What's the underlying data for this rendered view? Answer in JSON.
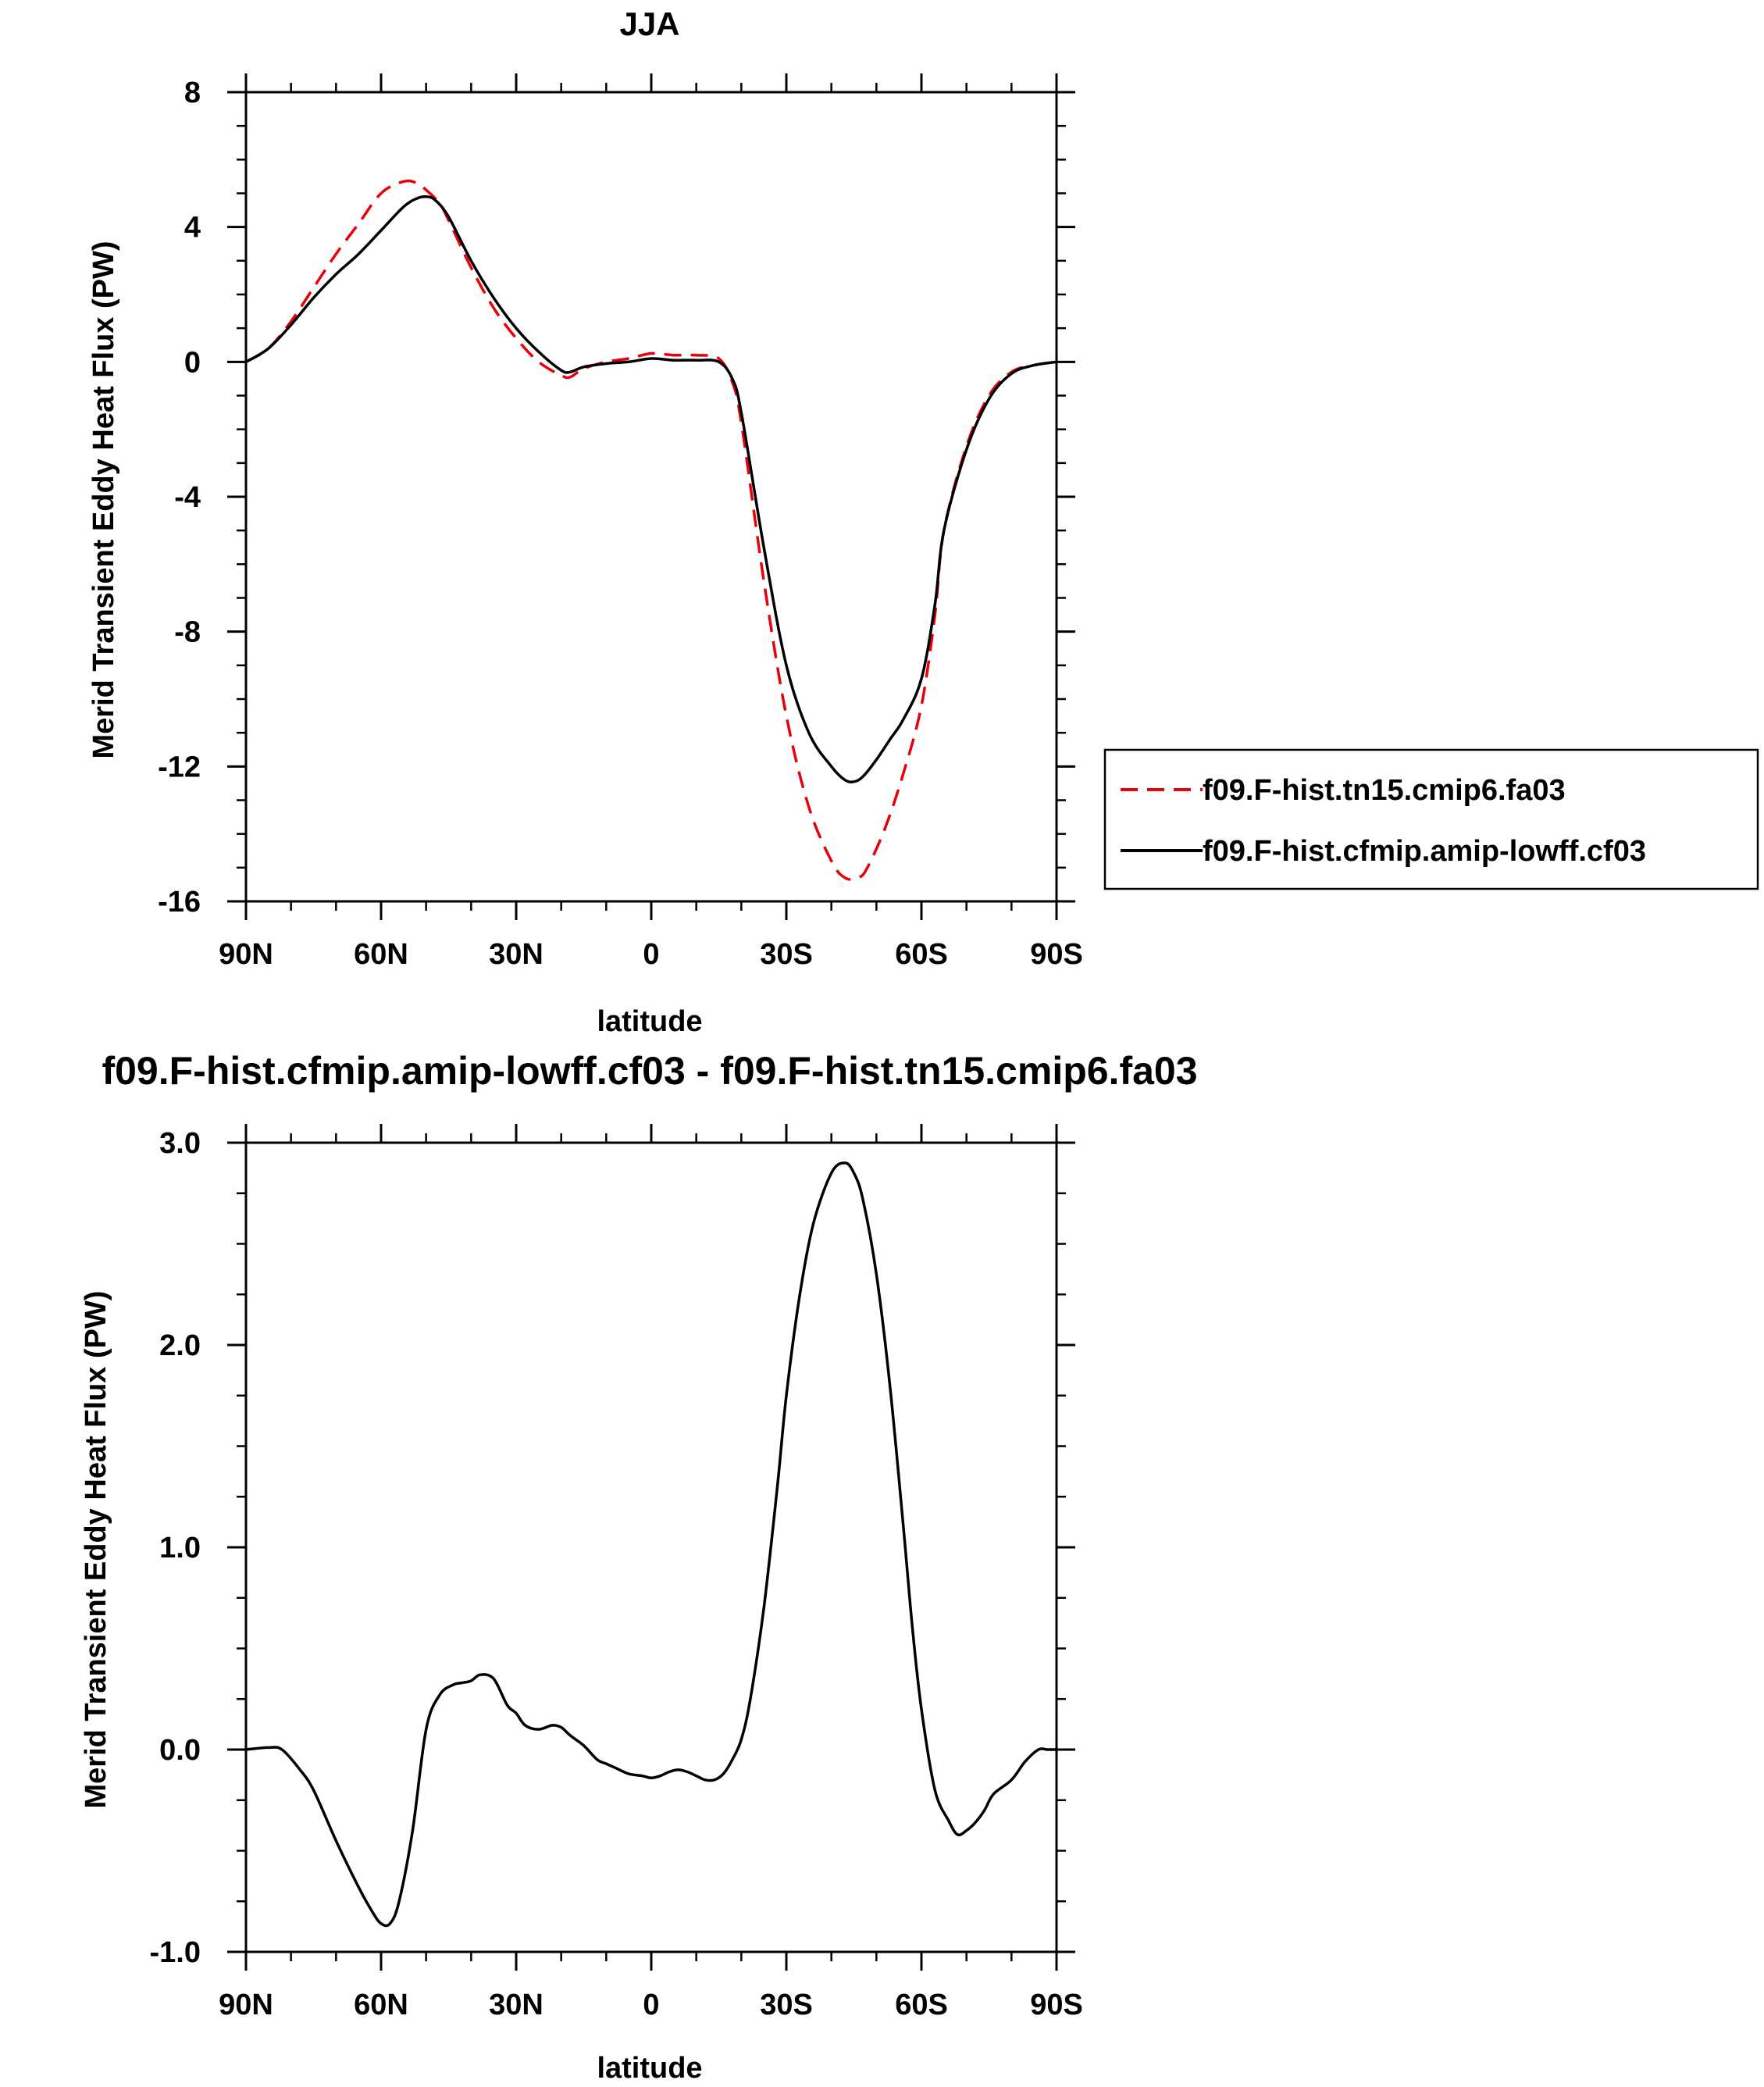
{
  "chart_data": [
    {
      "type": "line",
      "title": "JJA",
      "xlabel": "latitude",
      "ylabel": "Merid Transient Eddy Heat Flux (PW)",
      "xlim": [
        90,
        -90
      ],
      "ylim": [
        -16,
        8
      ],
      "x_ticks": [
        {
          "v": 90,
          "label": "90N"
        },
        {
          "v": 60,
          "label": "60N"
        },
        {
          "v": 30,
          "label": "30N"
        },
        {
          "v": 0,
          "label": "0"
        },
        {
          "v": -30,
          "label": "30S"
        },
        {
          "v": -60,
          "label": "60S"
        },
        {
          "v": -90,
          "label": "90S"
        }
      ],
      "y_ticks": [
        {
          "v": 8,
          "label": "8"
        },
        {
          "v": 4,
          "label": "4"
        },
        {
          "v": 0,
          "label": "0"
        },
        {
          "v": -4,
          "label": "-4"
        },
        {
          "v": -8,
          "label": "-8"
        },
        {
          "v": -12,
          "label": "-12"
        },
        {
          "v": -16,
          "label": "-16"
        }
      ],
      "legend_position": "right",
      "series": [
        {
          "name": "f09.F-hist.tn15.cmip6.fa03",
          "color": "#e8000b",
          "dash": "dashed",
          "x": [
            90,
            85,
            80,
            75,
            70,
            65,
            60,
            55,
            52,
            50,
            47,
            45,
            40,
            35,
            30,
            25,
            20,
            18,
            15,
            10,
            5,
            0,
            -5,
            -10,
            -15,
            -18,
            -20,
            -25,
            -30,
            -35,
            -40,
            -43,
            -46,
            -48,
            -52,
            -56,
            -60,
            -63,
            -65,
            -70,
            -75,
            -80,
            -85,
            -90
          ],
          "y": [
            0,
            0.4,
            1.2,
            2.2,
            3.2,
            4.1,
            5.0,
            5.35,
            5.3,
            5.1,
            4.7,
            4.2,
            2.8,
            1.6,
            0.7,
            0.0,
            -0.4,
            -0.45,
            -0.2,
            0.0,
            0.1,
            0.25,
            0.2,
            0.2,
            0.1,
            -0.6,
            -1.8,
            -6.5,
            -10.5,
            -13.2,
            -14.8,
            -15.3,
            -15.3,
            -15.0,
            -13.8,
            -12.2,
            -10.2,
            -7.5,
            -5.0,
            -2.5,
            -1.0,
            -0.3,
            -0.1,
            0
          ]
        },
        {
          "name": "f09.F-hist.cfmip.amip-lowff.cf03",
          "color": "#000000",
          "dash": "solid",
          "x": [
            90,
            85,
            80,
            75,
            70,
            65,
            60,
            55,
            52,
            50,
            48,
            45,
            40,
            35,
            30,
            25,
            20,
            18,
            15,
            10,
            5,
            0,
            -5,
            -10,
            -15,
            -18,
            -20,
            -25,
            -30,
            -35,
            -40,
            -43,
            -45,
            -47,
            -50,
            -53,
            -56,
            -60,
            -63,
            -65,
            -70,
            -75,
            -80,
            -85,
            -90
          ],
          "y": [
            0,
            0.4,
            1.1,
            1.9,
            2.6,
            3.2,
            3.9,
            4.6,
            4.85,
            4.9,
            4.8,
            4.3,
            3.0,
            1.9,
            1.0,
            0.3,
            -0.25,
            -0.3,
            -0.15,
            -0.05,
            0.0,
            0.1,
            0.05,
            0.05,
            0.0,
            -0.5,
            -1.5,
            -5.5,
            -9.0,
            -11.0,
            -12.0,
            -12.4,
            -12.45,
            -12.3,
            -11.8,
            -11.2,
            -10.6,
            -9.4,
            -7.2,
            -5.0,
            -2.6,
            -1.1,
            -0.35,
            -0.1,
            0
          ]
        }
      ]
    },
    {
      "type": "line",
      "title": "f09.F-hist.cfmip.amip-lowff.cf03 - f09.F-hist.tn15.cmip6.fa03",
      "xlabel": "latitude",
      "ylabel": "Merid Transient Eddy Heat Flux (PW)",
      "xlim": [
        90,
        -90
      ],
      "ylim": [
        -1.0,
        3.0
      ],
      "x_ticks": [
        {
          "v": 90,
          "label": "90N"
        },
        {
          "v": 60,
          "label": "60N"
        },
        {
          "v": 30,
          "label": "30N"
        },
        {
          "v": 0,
          "label": "0"
        },
        {
          "v": -30,
          "label": "30S"
        },
        {
          "v": -60,
          "label": "60S"
        },
        {
          "v": -90,
          "label": "90S"
        }
      ],
      "y_ticks": [
        {
          "v": 3.0,
          "label": "3.0"
        },
        {
          "v": 2.0,
          "label": "2.0"
        },
        {
          "v": 1.0,
          "label": "1.0"
        },
        {
          "v": 0.0,
          "label": "0.0"
        },
        {
          "v": -1.0,
          "label": "-1.0"
        }
      ],
      "series": [
        {
          "color": "#000000",
          "dash": "solid",
          "x": [
            90,
            85,
            82,
            78,
            75,
            70,
            65,
            62,
            60,
            58,
            56,
            53,
            50,
            47,
            44,
            42,
            40,
            38,
            35,
            32,
            30,
            28,
            25,
            22,
            20,
            18,
            15,
            12,
            10,
            8,
            5,
            2,
            0,
            -2,
            -4,
            -6,
            -8,
            -10,
            -12,
            -14,
            -16,
            -18,
            -20,
            -22,
            -25,
            -28,
            -30,
            -33,
            -36,
            -40,
            -43,
            -45,
            -47,
            -50,
            -53,
            -56,
            -58,
            -60,
            -63,
            -66,
            -68,
            -70,
            -72,
            -74,
            -76,
            -80,
            -83,
            -86,
            -88,
            -90
          ],
          "y": [
            0.0,
            0.01,
            0.0,
            -0.1,
            -0.2,
            -0.45,
            -0.68,
            -0.8,
            -0.86,
            -0.86,
            -0.75,
            -0.4,
            0.1,
            0.27,
            0.32,
            0.33,
            0.34,
            0.37,
            0.35,
            0.22,
            0.18,
            0.12,
            0.1,
            0.12,
            0.11,
            0.07,
            0.02,
            -0.05,
            -0.07,
            -0.09,
            -0.12,
            -0.13,
            -0.14,
            -0.13,
            -0.11,
            -0.1,
            -0.11,
            -0.13,
            -0.15,
            -0.15,
            -0.12,
            -0.05,
            0.05,
            0.25,
            0.7,
            1.3,
            1.75,
            2.25,
            2.6,
            2.85,
            2.9,
            2.85,
            2.72,
            2.35,
            1.8,
            1.1,
            0.6,
            0.2,
            -0.2,
            -0.35,
            -0.42,
            -0.4,
            -0.36,
            -0.3,
            -0.22,
            -0.15,
            -0.06,
            0.0,
            0.0,
            0.0
          ]
        }
      ]
    }
  ]
}
